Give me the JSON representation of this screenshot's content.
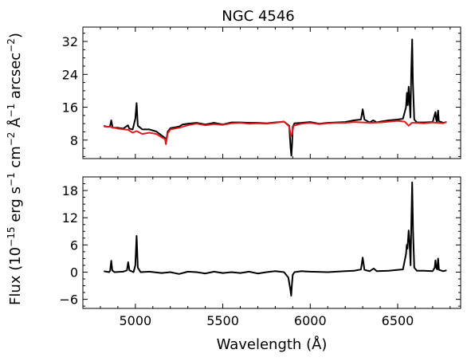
{
  "figure": {
    "title": "NGC 4546",
    "xlabel": "Wavelength (Å)",
    "ylabel_parts": [
      "Flux (10",
      "−15",
      " erg s",
      "−1",
      " cm",
      "−2",
      " Å",
      "−1",
      " arcsec",
      "−2",
      ")"
    ]
  },
  "chart_data": [
    {
      "type": "line",
      "panel": "top",
      "title": "NGC 4546",
      "xlabel": "",
      "ylabel": "",
      "xlim": [
        4700,
        6860
      ],
      "ylim": [
        3.5,
        35.5
      ],
      "xticks": [
        5000,
        5500,
        6000,
        6500
      ],
      "yticks": [
        8,
        16,
        24,
        32
      ],
      "ytick_labels": [
        "8",
        "16",
        "24",
        "32"
      ],
      "series": [
        {
          "name": "",
          "color": "#000000",
          "x": [
            4820,
            4840,
            4855,
            4862,
            4870,
            4900,
            4930,
            4958,
            4965,
            4985,
            5000,
            5007,
            5014,
            5040,
            5080,
            5120,
            5170,
            5175,
            5185,
            5200,
            5250,
            5270,
            5300,
            5350,
            5400,
            5450,
            5500,
            5550,
            5600,
            5650,
            5700,
            5750,
            5800,
            5850,
            5880,
            5888,
            5892,
            5896,
            5900,
            5910,
            5950,
            6000,
            6050,
            6100,
            6150,
            6200,
            6250,
            6290,
            6300,
            6310,
            6340,
            6360,
            6380,
            6400,
            6450,
            6500,
            6530,
            6548,
            6553,
            6558,
            6563,
            6568,
            6573,
            6578,
            6583,
            6587,
            6595,
            6610,
            6650,
            6700,
            6716,
            6720,
            6724,
            6731,
            6735,
            6760,
            6780
          ],
          "y": [
            11.5,
            11.2,
            11.3,
            12.8,
            11.0,
            11.0,
            10.8,
            11.6,
            10.8,
            10.6,
            13.2,
            17.0,
            11.5,
            10.6,
            10.6,
            10.1,
            8.5,
            7.6,
            10.0,
            10.9,
            11.3,
            11.8,
            12.0,
            12.2,
            11.8,
            12.2,
            11.8,
            12.3,
            12.3,
            12.2,
            12.2,
            12.1,
            12.3,
            12.5,
            11.5,
            6.0,
            4.2,
            7.0,
            11.2,
            12.1,
            12.2,
            12.4,
            12.0,
            12.2,
            12.3,
            12.4,
            12.8,
            13.0,
            15.5,
            13.0,
            12.3,
            12.8,
            12.3,
            12.5,
            12.8,
            13.0,
            13.2,
            16.0,
            19.5,
            16.5,
            21.0,
            17.5,
            13.5,
            25.0,
            32.5,
            22.0,
            13.0,
            12.3,
            12.3,
            12.4,
            14.8,
            13.0,
            12.5,
            15.2,
            12.6,
            12.2,
            12.4
          ]
        },
        {
          "name": "",
          "color": "#e41a1c",
          "x": [
            4820,
            4860,
            4900,
            4958,
            4985,
            5007,
            5040,
            5080,
            5120,
            5170,
            5175,
            5185,
            5200,
            5250,
            5300,
            5350,
            5400,
            5450,
            5500,
            5550,
            5600,
            5650,
            5700,
            5750,
            5800,
            5850,
            5880,
            5890,
            5896,
            5905,
            5950,
            6000,
            6050,
            6100,
            6150,
            6200,
            6250,
            6300,
            6350,
            6400,
            6450,
            6500,
            6540,
            6563,
            6580,
            6600,
            6650,
            6700,
            6730,
            6760,
            6780
          ],
          "y": [
            11.3,
            11.2,
            10.8,
            10.5,
            9.8,
            10.2,
            9.5,
            9.8,
            9.5,
            8.2,
            7.0,
            9.6,
            10.6,
            11.0,
            11.6,
            12.0,
            11.6,
            11.9,
            11.7,
            12.1,
            12.2,
            12.0,
            12.1,
            12.0,
            12.2,
            12.5,
            11.3,
            9.0,
            9.6,
            11.5,
            12.0,
            12.2,
            11.9,
            12.1,
            12.2,
            12.2,
            12.4,
            12.3,
            12.2,
            12.3,
            12.5,
            12.7,
            12.5,
            11.5,
            12.2,
            12.2,
            12.1,
            12.3,
            12.2,
            12.1,
            12.4
          ]
        }
      ]
    },
    {
      "type": "line",
      "panel": "bottom",
      "xlabel": "Wavelength (Å)",
      "ylabel": "",
      "xlim": [
        4700,
        6860
      ],
      "ylim": [
        -8.0,
        21.0
      ],
      "xticks": [
        5000,
        5500,
        6000,
        6500
      ],
      "xtick_labels": [
        "5000",
        "5500",
        "6000",
        "6500"
      ],
      "yticks": [
        -6,
        0,
        6,
        12,
        18
      ],
      "ytick_labels": [
        "−6",
        "0",
        "6",
        "12",
        "18"
      ],
      "series": [
        {
          "name": "",
          "color": "#000000",
          "x": [
            4820,
            4850,
            4856,
            4862,
            4868,
            4880,
            4930,
            4952,
            4959,
            4966,
            4990,
            5000,
            5007,
            5014,
            5030,
            5080,
            5150,
            5200,
            5250,
            5300,
            5350,
            5400,
            5450,
            5500,
            5550,
            5600,
            5650,
            5700,
            5750,
            5800,
            5850,
            5875,
            5886,
            5891,
            5895,
            5900,
            5910,
            5950,
            6000,
            6100,
            6200,
            6250,
            6290,
            6300,
            6310,
            6340,
            6363,
            6380,
            6450,
            6500,
            6530,
            6548,
            6552,
            6556,
            6563,
            6568,
            6574,
            6578,
            6583,
            6588,
            6595,
            6610,
            6650,
            6700,
            6712,
            6716,
            6720,
            6726,
            6731,
            6736,
            6760,
            6780
          ],
          "y": [
            0.2,
            0.0,
            0.3,
            2.5,
            0.4,
            0.0,
            0.1,
            0.4,
            2.2,
            0.4,
            0.0,
            1.5,
            8.0,
            1.0,
            0.0,
            0.1,
            -0.2,
            0.0,
            -0.4,
            0.1,
            0.0,
            -0.3,
            0.1,
            -0.2,
            0.0,
            -0.2,
            0.1,
            -0.3,
            0.0,
            0.2,
            0.0,
            -1.2,
            -3.8,
            -5.2,
            -3.0,
            -0.6,
            0.0,
            0.2,
            0.1,
            0.0,
            0.2,
            0.3,
            0.6,
            3.2,
            0.5,
            0.2,
            0.8,
            0.2,
            0.3,
            0.5,
            0.6,
            4.0,
            6.0,
            5.2,
            9.2,
            6.5,
            1.5,
            10.5,
            19.8,
            9.0,
            1.0,
            0.3,
            0.3,
            0.2,
            1.0,
            2.6,
            1.0,
            0.6,
            3.0,
            0.5,
            0.2,
            0.4
          ]
        }
      ]
    }
  ]
}
